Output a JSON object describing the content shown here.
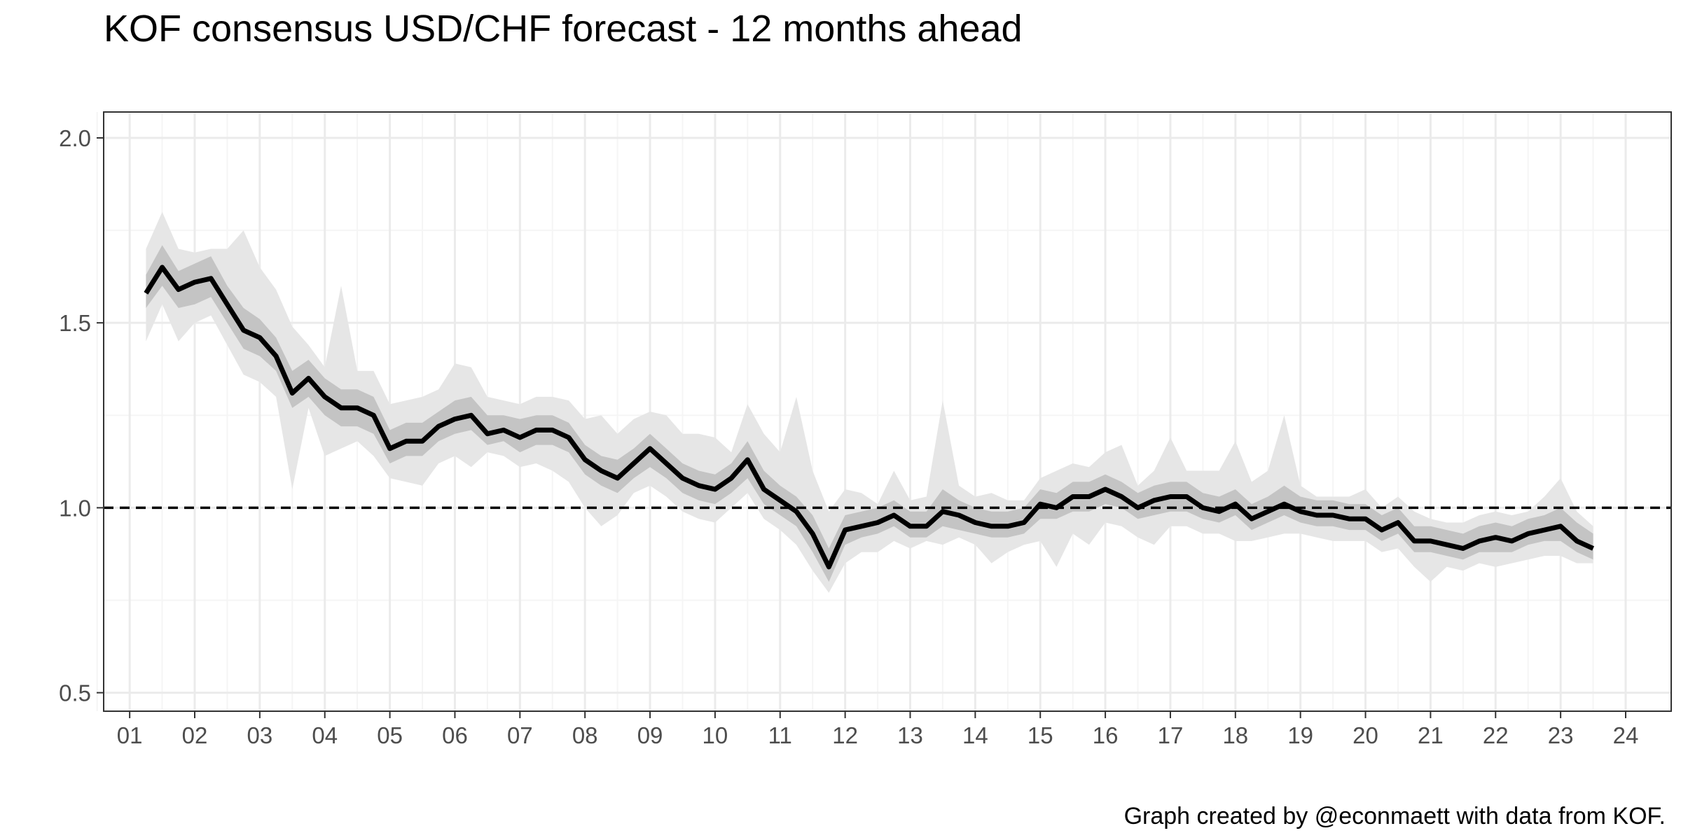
{
  "chart_data": {
    "type": "line",
    "title": "KOF consensus USD/CHF forecast - 12 months ahead",
    "caption": "Graph created by @econmaett with data from KOF.",
    "xlabel": "",
    "ylabel": "",
    "xlim": [
      2000.6,
      2024.7
    ],
    "ylim": [
      0.45,
      2.07
    ],
    "x_ticks": [
      2001,
      2002,
      2003,
      2004,
      2005,
      2006,
      2007,
      2008,
      2009,
      2010,
      2011,
      2012,
      2013,
      2014,
      2015,
      2016,
      2017,
      2018,
      2019,
      2020,
      2021,
      2022,
      2023,
      2024
    ],
    "x_tick_labels": [
      "01",
      "02",
      "03",
      "04",
      "05",
      "06",
      "07",
      "08",
      "09",
      "10",
      "11",
      "12",
      "13",
      "14",
      "15",
      "16",
      "17",
      "18",
      "19",
      "20",
      "21",
      "22",
      "23",
      "24"
    ],
    "y_ticks": [
      0.5,
      1.0,
      1.5,
      2.0
    ],
    "y_tick_labels": [
      "0.5",
      "1.0",
      "1.5",
      "2.0"
    ],
    "grid": true,
    "reference_line": 1.0,
    "colors": {
      "line": "#000000",
      "inner_band": "#c4c4c4",
      "outer_band": "#e6e6e6",
      "grid_major": "#ebebeb",
      "grid_minor": "#f5f5f5",
      "panel_border": "#333333"
    },
    "series": [
      {
        "x": [
          2001.25,
          2001.5,
          2001.75,
          2002.0,
          2002.25,
          2002.5,
          2002.75,
          2003.0,
          2003.25,
          2003.5,
          2003.75,
          2004.0,
          2004.25,
          2004.5,
          2004.75,
          2005.0,
          2005.25,
          2005.5,
          2005.75,
          2006.0,
          2006.25,
          2006.5,
          2006.75,
          2007.0,
          2007.25,
          2007.5,
          2007.75,
          2008.0,
          2008.25,
          2008.5,
          2008.75,
          2009.0,
          2009.25,
          2009.5,
          2009.75,
          2010.0,
          2010.25,
          2010.5,
          2010.75,
          2011.0,
          2011.25,
          2011.5,
          2011.75,
          2012.0,
          2012.25,
          2012.5,
          2012.75,
          2013.0,
          2013.25,
          2013.5,
          2013.75,
          2014.0,
          2014.25,
          2014.5,
          2014.75,
          2015.0,
          2015.25,
          2015.5,
          2015.75,
          2016.0,
          2016.25,
          2016.5,
          2016.75,
          2017.0,
          2017.25,
          2017.5,
          2017.75,
          2018.0,
          2018.25,
          2018.5,
          2018.75,
          2019.0,
          2019.25,
          2019.5,
          2019.75,
          2020.0,
          2020.25,
          2020.5,
          2020.75,
          2021.0,
          2021.25,
          2021.5,
          2021.75,
          2022.0,
          2022.25,
          2022.5,
          2022.75,
          2023.0,
          2023.25,
          2023.5
        ],
        "y": [
          1.58,
          1.65,
          1.59,
          1.61,
          1.62,
          1.55,
          1.48,
          1.46,
          1.41,
          1.31,
          1.35,
          1.3,
          1.27,
          1.27,
          1.25,
          1.16,
          1.18,
          1.18,
          1.22,
          1.24,
          1.25,
          1.2,
          1.21,
          1.19,
          1.21,
          1.21,
          1.19,
          1.13,
          1.1,
          1.08,
          1.12,
          1.16,
          1.12,
          1.08,
          1.06,
          1.05,
          1.08,
          1.13,
          1.05,
          1.02,
          0.99,
          0.93,
          0.84,
          0.94,
          0.95,
          0.96,
          0.98,
          0.95,
          0.95,
          0.99,
          0.98,
          0.96,
          0.95,
          0.95,
          0.96,
          1.01,
          1.0,
          1.03,
          1.03,
          1.05,
          1.03,
          1.0,
          1.02,
          1.03,
          1.03,
          1.0,
          0.99,
          1.01,
          0.97,
          0.99,
          1.01,
          0.99,
          0.98,
          0.98,
          0.97,
          0.97,
          0.94,
          0.96,
          0.91,
          0.91,
          0.9,
          0.89,
          0.91,
          0.92,
          0.91,
          0.93,
          0.94,
          0.95,
          0.91,
          0.89
        ],
        "inner_low": [
          1.54,
          1.6,
          1.54,
          1.55,
          1.57,
          1.5,
          1.43,
          1.41,
          1.37,
          1.27,
          1.3,
          1.25,
          1.22,
          1.22,
          1.2,
          1.12,
          1.14,
          1.14,
          1.18,
          1.2,
          1.21,
          1.17,
          1.18,
          1.15,
          1.17,
          1.17,
          1.15,
          1.09,
          1.06,
          1.04,
          1.08,
          1.11,
          1.08,
          1.04,
          1.02,
          1.01,
          1.04,
          1.08,
          1.01,
          0.98,
          0.95,
          0.88,
          0.8,
          0.9,
          0.92,
          0.93,
          0.95,
          0.92,
          0.92,
          0.95,
          0.94,
          0.93,
          0.92,
          0.92,
          0.93,
          0.97,
          0.97,
          0.99,
          0.99,
          1.01,
          1.0,
          0.97,
          0.98,
          0.99,
          0.99,
          0.97,
          0.96,
          0.98,
          0.94,
          0.96,
          0.98,
          0.96,
          0.95,
          0.95,
          0.94,
          0.94,
          0.91,
          0.93,
          0.88,
          0.88,
          0.87,
          0.86,
          0.88,
          0.88,
          0.88,
          0.9,
          0.91,
          0.91,
          0.88,
          0.86
        ],
        "inner_high": [
          1.63,
          1.71,
          1.64,
          1.66,
          1.68,
          1.6,
          1.54,
          1.51,
          1.46,
          1.37,
          1.4,
          1.35,
          1.32,
          1.32,
          1.3,
          1.21,
          1.23,
          1.23,
          1.26,
          1.29,
          1.3,
          1.25,
          1.25,
          1.24,
          1.25,
          1.25,
          1.23,
          1.17,
          1.14,
          1.13,
          1.16,
          1.2,
          1.16,
          1.12,
          1.1,
          1.09,
          1.12,
          1.18,
          1.1,
          1.06,
          1.03,
          0.98,
          0.89,
          0.98,
          0.99,
          1.0,
          1.02,
          0.99,
          0.99,
          1.05,
          1.02,
          1.0,
          0.99,
          0.99,
          1.0,
          1.05,
          1.04,
          1.07,
          1.07,
          1.09,
          1.07,
          1.04,
          1.06,
          1.07,
          1.07,
          1.04,
          1.03,
          1.05,
          1.01,
          1.03,
          1.06,
          1.03,
          1.02,
          1.02,
          1.01,
          1.01,
          0.98,
          1.0,
          0.95,
          0.95,
          0.94,
          0.93,
          0.95,
          0.96,
          0.95,
          0.97,
          0.98,
          1.0,
          0.96,
          0.93
        ],
        "outer_low": [
          1.45,
          1.55,
          1.45,
          1.5,
          1.52,
          1.44,
          1.36,
          1.34,
          1.3,
          1.05,
          1.27,
          1.14,
          1.16,
          1.18,
          1.14,
          1.08,
          1.07,
          1.06,
          1.12,
          1.14,
          1.11,
          1.15,
          1.14,
          1.11,
          1.12,
          1.1,
          1.07,
          1.0,
          0.95,
          0.98,
          1.04,
          1.06,
          1.03,
          0.99,
          0.97,
          0.96,
          1.0,
          1.04,
          0.97,
          0.94,
          0.9,
          0.83,
          0.77,
          0.85,
          0.88,
          0.88,
          0.91,
          0.89,
          0.91,
          0.9,
          0.92,
          0.9,
          0.85,
          0.88,
          0.9,
          0.91,
          0.84,
          0.93,
          0.9,
          0.96,
          0.95,
          0.92,
          0.9,
          0.95,
          0.95,
          0.93,
          0.93,
          0.91,
          0.91,
          0.92,
          0.93,
          0.93,
          0.92,
          0.91,
          0.91,
          0.91,
          0.88,
          0.89,
          0.84,
          0.8,
          0.84,
          0.83,
          0.85,
          0.84,
          0.85,
          0.86,
          0.87,
          0.87,
          0.85,
          0.85
        ],
        "outer_high": [
          1.7,
          1.8,
          1.7,
          1.69,
          1.7,
          1.7,
          1.75,
          1.65,
          1.59,
          1.49,
          1.44,
          1.38,
          1.6,
          1.37,
          1.37,
          1.28,
          1.29,
          1.3,
          1.32,
          1.39,
          1.38,
          1.3,
          1.29,
          1.28,
          1.3,
          1.3,
          1.29,
          1.24,
          1.25,
          1.2,
          1.24,
          1.26,
          1.25,
          1.2,
          1.2,
          1.19,
          1.15,
          1.28,
          1.2,
          1.15,
          1.3,
          1.1,
          0.99,
          1.05,
          1.04,
          1.01,
          1.1,
          1.02,
          1.03,
          1.29,
          1.06,
          1.03,
          1.04,
          1.02,
          1.02,
          1.08,
          1.1,
          1.12,
          1.11,
          1.15,
          1.17,
          1.06,
          1.1,
          1.19,
          1.1,
          1.1,
          1.1,
          1.18,
          1.07,
          1.1,
          1.25,
          1.06,
          1.03,
          1.03,
          1.03,
          1.05,
          1.0,
          1.03,
          0.99,
          0.97,
          0.96,
          0.96,
          0.98,
          0.99,
          0.98,
          0.99,
          1.03,
          1.08,
          0.99,
          0.95
        ]
      }
    ]
  }
}
